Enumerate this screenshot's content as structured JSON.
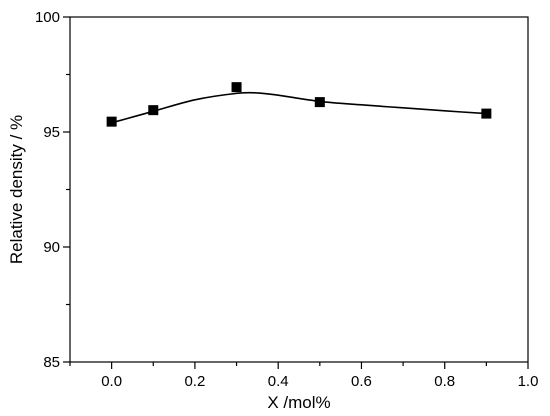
{
  "chart_data": {
    "type": "scatter",
    "title": "",
    "xlabel": "X /mol%",
    "ylabel": "Relative density / %",
    "xlim": [
      -0.1,
      1.0
    ],
    "ylim": [
      85,
      100
    ],
    "xticks": [
      0.0,
      0.2,
      0.4,
      0.6,
      0.8,
      1.0
    ],
    "xtick_labels": [
      "0.0",
      "0.2",
      "0.4",
      "0.6",
      "0.8",
      "1.0"
    ],
    "xticks_minor": [
      -0.1,
      0.1,
      0.3,
      0.5,
      0.7,
      0.9
    ],
    "yticks": [
      85,
      90,
      95,
      100
    ],
    "ytick_labels": [
      "85",
      "90",
      "95",
      "100"
    ],
    "yticks_minor": [
      87.5,
      92.5,
      97.5
    ],
    "grid": false,
    "legend": "none",
    "marker": "square",
    "fit_line": "smooth curve",
    "series": [
      {
        "x": [
          0.0,
          0.1,
          0.3,
          0.5,
          0.9
        ],
        "y": [
          95.45,
          95.95,
          96.95,
          96.3,
          95.8
        ]
      }
    ],
    "curve_points": {
      "x": [
        0.0,
        0.1,
        0.2,
        0.3,
        0.35,
        0.4,
        0.5,
        0.6,
        0.7,
        0.8,
        0.9
      ],
      "y": [
        95.4,
        95.9,
        96.4,
        96.68,
        96.7,
        96.6,
        96.33,
        96.18,
        96.05,
        95.92,
        95.8
      ]
    }
  }
}
